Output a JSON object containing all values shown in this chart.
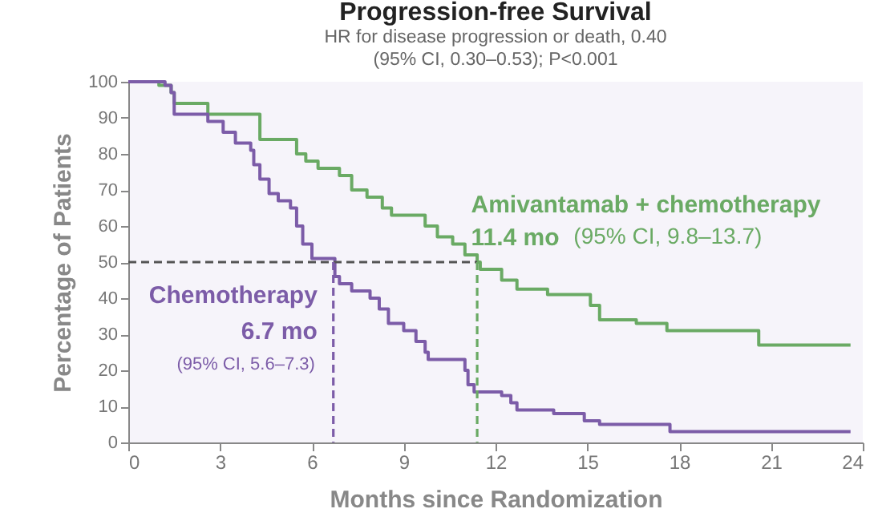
{
  "chart_data": {
    "type": "step",
    "title": "Progression-free Survival",
    "subtitle": "HR for disease progression or death, 0.40\n(95% CI, 0.30–0.53); P<0.001",
    "xlabel": "Months since Randomization",
    "ylabel": "Percentage of Patients",
    "xlim": [
      0,
      24
    ],
    "xticks": [
      0,
      3,
      6,
      9,
      12,
      15,
      18,
      21,
      24
    ],
    "ylim": [
      0,
      100
    ],
    "yticks": [
      0,
      10,
      20,
      30,
      40,
      50,
      60,
      70,
      80,
      90,
      100
    ],
    "grid": false,
    "legend": false,
    "line_style": "solid",
    "annotations": [
      "11.4 mo",
      "(95% CI, 9.8–13.7)",
      "6.7 mo",
      "(95% CI, 5.6–7.3)"
    ],
    "series": [
      {
        "name": "Amivantamab + chemotherapy",
        "color": "#6aaa64",
        "x": [
          0,
          1.0,
          1.4,
          1.5,
          2.6,
          4.3,
          5.5,
          5.8,
          6.2,
          6.9,
          7.3,
          7.8,
          8.3,
          8.6,
          9.7,
          10.1,
          10.6,
          11.0,
          11.4,
          11.5,
          12.2,
          12.7,
          13.7,
          15.1,
          15.4,
          16.6,
          17.6,
          20.6,
          23.6
        ],
        "values": [
          100,
          99,
          97,
          94,
          91,
          84,
          80,
          78,
          76,
          74,
          70,
          68,
          65,
          63,
          60,
          57,
          55,
          52,
          50,
          48,
          45,
          42.5,
          41,
          38,
          34,
          33,
          31,
          27,
          27
        ]
      },
      {
        "name": "Chemotherapy",
        "color": "#7c5ca8",
        "x": [
          0,
          1.2,
          1.4,
          1.5,
          2.6,
          3.1,
          3.5,
          4.0,
          4.1,
          4.3,
          4.6,
          4.9,
          5.3,
          5.5,
          5.7,
          6.0,
          6.75,
          6.9,
          7.3,
          7.9,
          8.2,
          8.5,
          9.0,
          9.4,
          9.7,
          9.8,
          11.0,
          11.1,
          11.3,
          12.2,
          12.5,
          12.7,
          13.9,
          14.9,
          15.4,
          17.7,
          23.6
        ],
        "values": [
          100,
          99,
          97,
          91,
          89,
          86,
          83,
          81,
          77,
          73,
          69,
          67,
          65,
          60,
          55,
          51,
          46,
          44,
          42,
          40,
          37,
          33,
          31,
          28,
          25,
          23,
          20,
          16,
          14,
          13,
          11,
          9,
          8,
          6,
          5,
          3,
          3
        ]
      },
      {
        "type": "line",
        "line_style": "dashed",
        "color": "#555555",
        "x": [
          0,
          11.4
        ],
        "values": [
          50,
          50
        ]
      },
      {
        "type": "line",
        "line_style": "dashed",
        "color": "#7c5ca8",
        "x": [
          6.7,
          6.7
        ],
        "values": [
          50,
          0
        ]
      },
      {
        "type": "line",
        "line_style": "dashed",
        "color": "#6aaa64",
        "x": [
          11.4,
          11.4
        ],
        "values": [
          50,
          0
        ]
      }
    ]
  }
}
